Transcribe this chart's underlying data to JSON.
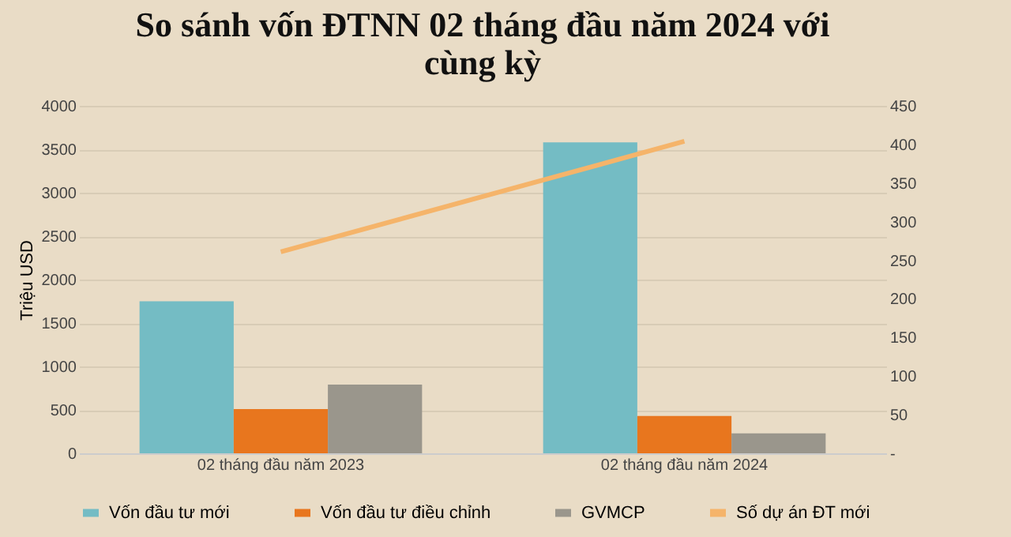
{
  "chart_data": {
    "type": "bar",
    "title": "So sánh vốn ĐTNN 02 tháng đầu năm 2024 với cùng kỳ",
    "ylabel": "Triệu USD",
    "categories": [
      "02 tháng đầu năm 2023",
      "02 tháng đầu năm 2024"
    ],
    "series": [
      {
        "name": "Vốn đầu tư mới",
        "color": "#74bcc4",
        "values": [
          1750,
          3580
        ]
      },
      {
        "name": "Vốn đầu tư điều chỉnh",
        "color": "#e8761e",
        "values": [
          510,
          430
        ]
      },
      {
        "name": "GVMCP",
        "color": "#9a968c",
        "values": [
          790,
          230
        ]
      },
      {
        "name": "Số dự án ĐT mới",
        "color": "#f5b46a",
        "type": "line",
        "axis": "y2",
        "values": [
          261,
          404
        ]
      }
    ],
    "ylim": [
      0,
      4000
    ],
    "yticks": [
      0,
      500,
      1000,
      1500,
      2000,
      2500,
      3000,
      3500,
      4000
    ],
    "y2lim": [
      0,
      450
    ],
    "y2ticks": [
      {
        "value": 0,
        "label": "-"
      },
      50,
      100,
      150,
      200,
      250,
      300,
      350,
      400,
      450
    ],
    "grid": "y",
    "legend": "bottom"
  }
}
